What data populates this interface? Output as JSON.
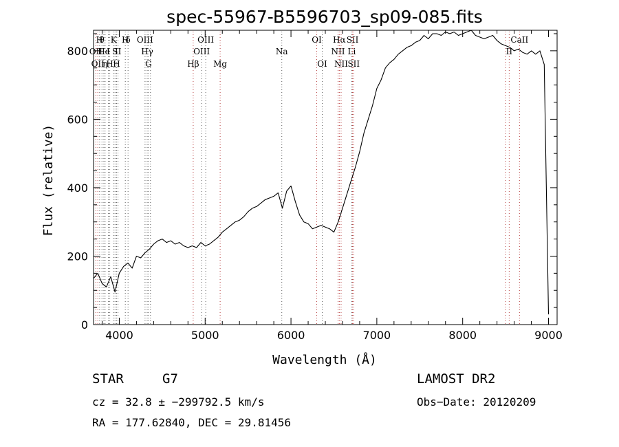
{
  "chart_data": {
    "type": "line",
    "title": "spec-55967-B5596703_sp09-085.fits",
    "xlabel": "Wavelength (Å)",
    "ylabel": "Flux (relative)",
    "xlim": [
      3700,
      9100
    ],
    "ylim": [
      0,
      860
    ],
    "xticks": [
      4000,
      5000,
      6000,
      7000,
      8000,
      9000
    ],
    "yticks": [
      0,
      200,
      400,
      600,
      800
    ],
    "grid": false,
    "series": [
      {
        "color": "#000000",
        "x": [
          3700,
          3750,
          3800,
          3850,
          3900,
          3950,
          4000,
          4050,
          4100,
          4150,
          4200,
          4250,
          4300,
          4350,
          4400,
          4450,
          4500,
          4550,
          4600,
          4650,
          4700,
          4750,
          4800,
          4850,
          4900,
          4950,
          5000,
          5050,
          5100,
          5150,
          5200,
          5250,
          5300,
          5350,
          5400,
          5450,
          5500,
          5550,
          5600,
          5650,
          5700,
          5750,
          5800,
          5850,
          5900,
          5950,
          6000,
          6050,
          6100,
          6150,
          6200,
          6250,
          6300,
          6350,
          6400,
          6450,
          6500,
          6550,
          6600,
          6650,
          6700,
          6750,
          6800,
          6850,
          6900,
          6950,
          7000,
          7050,
          7100,
          7150,
          7200,
          7250,
          7300,
          7350,
          7400,
          7450,
          7500,
          7550,
          7600,
          7650,
          7700,
          7750,
          7800,
          7850,
          7900,
          7950,
          8000,
          8050,
          8100,
          8150,
          8200,
          8250,
          8300,
          8350,
          8400,
          8450,
          8500,
          8550,
          8600,
          8650,
          8700,
          8750,
          8800,
          8850,
          8900,
          8950,
          9000
        ],
        "y": [
          135,
          150,
          120,
          110,
          140,
          95,
          150,
          170,
          180,
          165,
          200,
          195,
          210,
          220,
          235,
          245,
          250,
          240,
          245,
          235,
          240,
          230,
          225,
          230,
          225,
          240,
          230,
          235,
          245,
          255,
          270,
          280,
          290,
          300,
          305,
          315,
          330,
          340,
          345,
          355,
          365,
          370,
          375,
          385,
          340,
          390,
          405,
          360,
          320,
          300,
          295,
          280,
          285,
          290,
          285,
          280,
          270,
          300,
          340,
          380,
          420,
          460,
          505,
          560,
          600,
          640,
          690,
          715,
          750,
          765,
          775,
          790,
          800,
          810,
          815,
          825,
          830,
          845,
          835,
          850,
          850,
          845,
          855,
          850,
          855,
          845,
          850,
          855,
          860,
          845,
          840,
          835,
          840,
          845,
          830,
          820,
          815,
          810,
          800,
          805,
          795,
          790,
          800,
          790,
          800,
          760,
          30
        ]
      }
    ],
    "line_markers": [
      {
        "wavelength": 3727,
        "label": "OII",
        "row": 2,
        "color": "#b84040"
      },
      {
        "wavelength": 3750,
        "label": "OII",
        "row": 3,
        "color": "#b84040"
      },
      {
        "wavelength": 3771,
        "label": "H",
        "row": 1,
        "color": "#606060"
      },
      {
        "wavelength": 3798,
        "label": "θ",
        "row": 1,
        "color": "#606060"
      },
      {
        "wavelength": 3820,
        "label": "He",
        "row": 2,
        "color": "#606060"
      },
      {
        "wavelength": 3835,
        "label": "η",
        "row": 3,
        "color": "#606060"
      },
      {
        "wavelength": 3872,
        "label": "I",
        "row": 2,
        "color": "#606060"
      },
      {
        "wavelength": 3889,
        "label": "H",
        "row": 3,
        "color": "#606060"
      },
      {
        "wavelength": 3934,
        "label": "K",
        "row": 1,
        "color": "#606060"
      },
      {
        "wavelength": 3950,
        "label": "S",
        "row": 2,
        "color": "#606060"
      },
      {
        "wavelength": 3968,
        "label": "H",
        "row": 3,
        "color": "#606060"
      },
      {
        "wavelength": 3985,
        "label": "II",
        "row": 2,
        "color": "#606060"
      },
      {
        "wavelength": 4070,
        "label": "H",
        "row": 1,
        "color": "#606060"
      },
      {
        "wavelength": 4102,
        "label": "δ",
        "row": 1,
        "color": "#606060"
      },
      {
        "wavelength": 4300,
        "label": "OIII",
        "row": 1,
        "color": "#606060"
      },
      {
        "wavelength": 4325,
        "label": "Hγ",
        "row": 2,
        "color": "#606060"
      },
      {
        "wavelength": 4340,
        "label": "G",
        "row": 3,
        "color": "#606060"
      },
      {
        "wavelength": 4363,
        "label": "",
        "row": 0,
        "color": "#606060"
      },
      {
        "wavelength": 4861,
        "label": "Hβ",
        "row": 3,
        "color": "#b84040"
      },
      {
        "wavelength": 4959,
        "label": "OIII",
        "row": 2,
        "color": "#606060"
      },
      {
        "wavelength": 5007,
        "label": "OIII",
        "row": 1,
        "color": "#606060"
      },
      {
        "wavelength": 5175,
        "label": "Mg",
        "row": 3,
        "color": "#b84040"
      },
      {
        "wavelength": 5893,
        "label": "Na",
        "row": 2,
        "color": "#606060"
      },
      {
        "wavelength": 6300,
        "label": "OI",
        "row": 1,
        "color": "#b84040"
      },
      {
        "wavelength": 6364,
        "label": "OI",
        "row": 3,
        "color": "#606060"
      },
      {
        "wavelength": 6548,
        "label": "NII",
        "row": 2,
        "color": "#b84040"
      },
      {
        "wavelength": 6563,
        "label": "Hα",
        "row": 1,
        "color": "#b84040"
      },
      {
        "wavelength": 6584,
        "label": "NII",
        "row": 3,
        "color": "#b84040"
      },
      {
        "wavelength": 6708,
        "label": "Li",
        "row": 2,
        "color": "#606060"
      },
      {
        "wavelength": 6717,
        "label": "SII",
        "row": 1,
        "color": "#b84040"
      },
      {
        "wavelength": 6731,
        "label": "SII",
        "row": 3,
        "color": "#b84040"
      },
      {
        "wavelength": 8498,
        "label": "",
        "row": 0,
        "color": "#b84040"
      },
      {
        "wavelength": 8542,
        "label": "II",
        "row": 2,
        "color": "#b84040"
      },
      {
        "wavelength": 8662,
        "label": "CaII",
        "row": 1,
        "color": "#b84040"
      }
    ]
  },
  "info": {
    "object_class": "STAR",
    "subclass": "G7",
    "survey": "LAMOST DR2",
    "cz": "cz = 32.8 ± −299792.5 km/s",
    "obs_date": "Obs−Date: 20120209",
    "coords": "RA = 177.62840, DEC =  29.81456"
  }
}
